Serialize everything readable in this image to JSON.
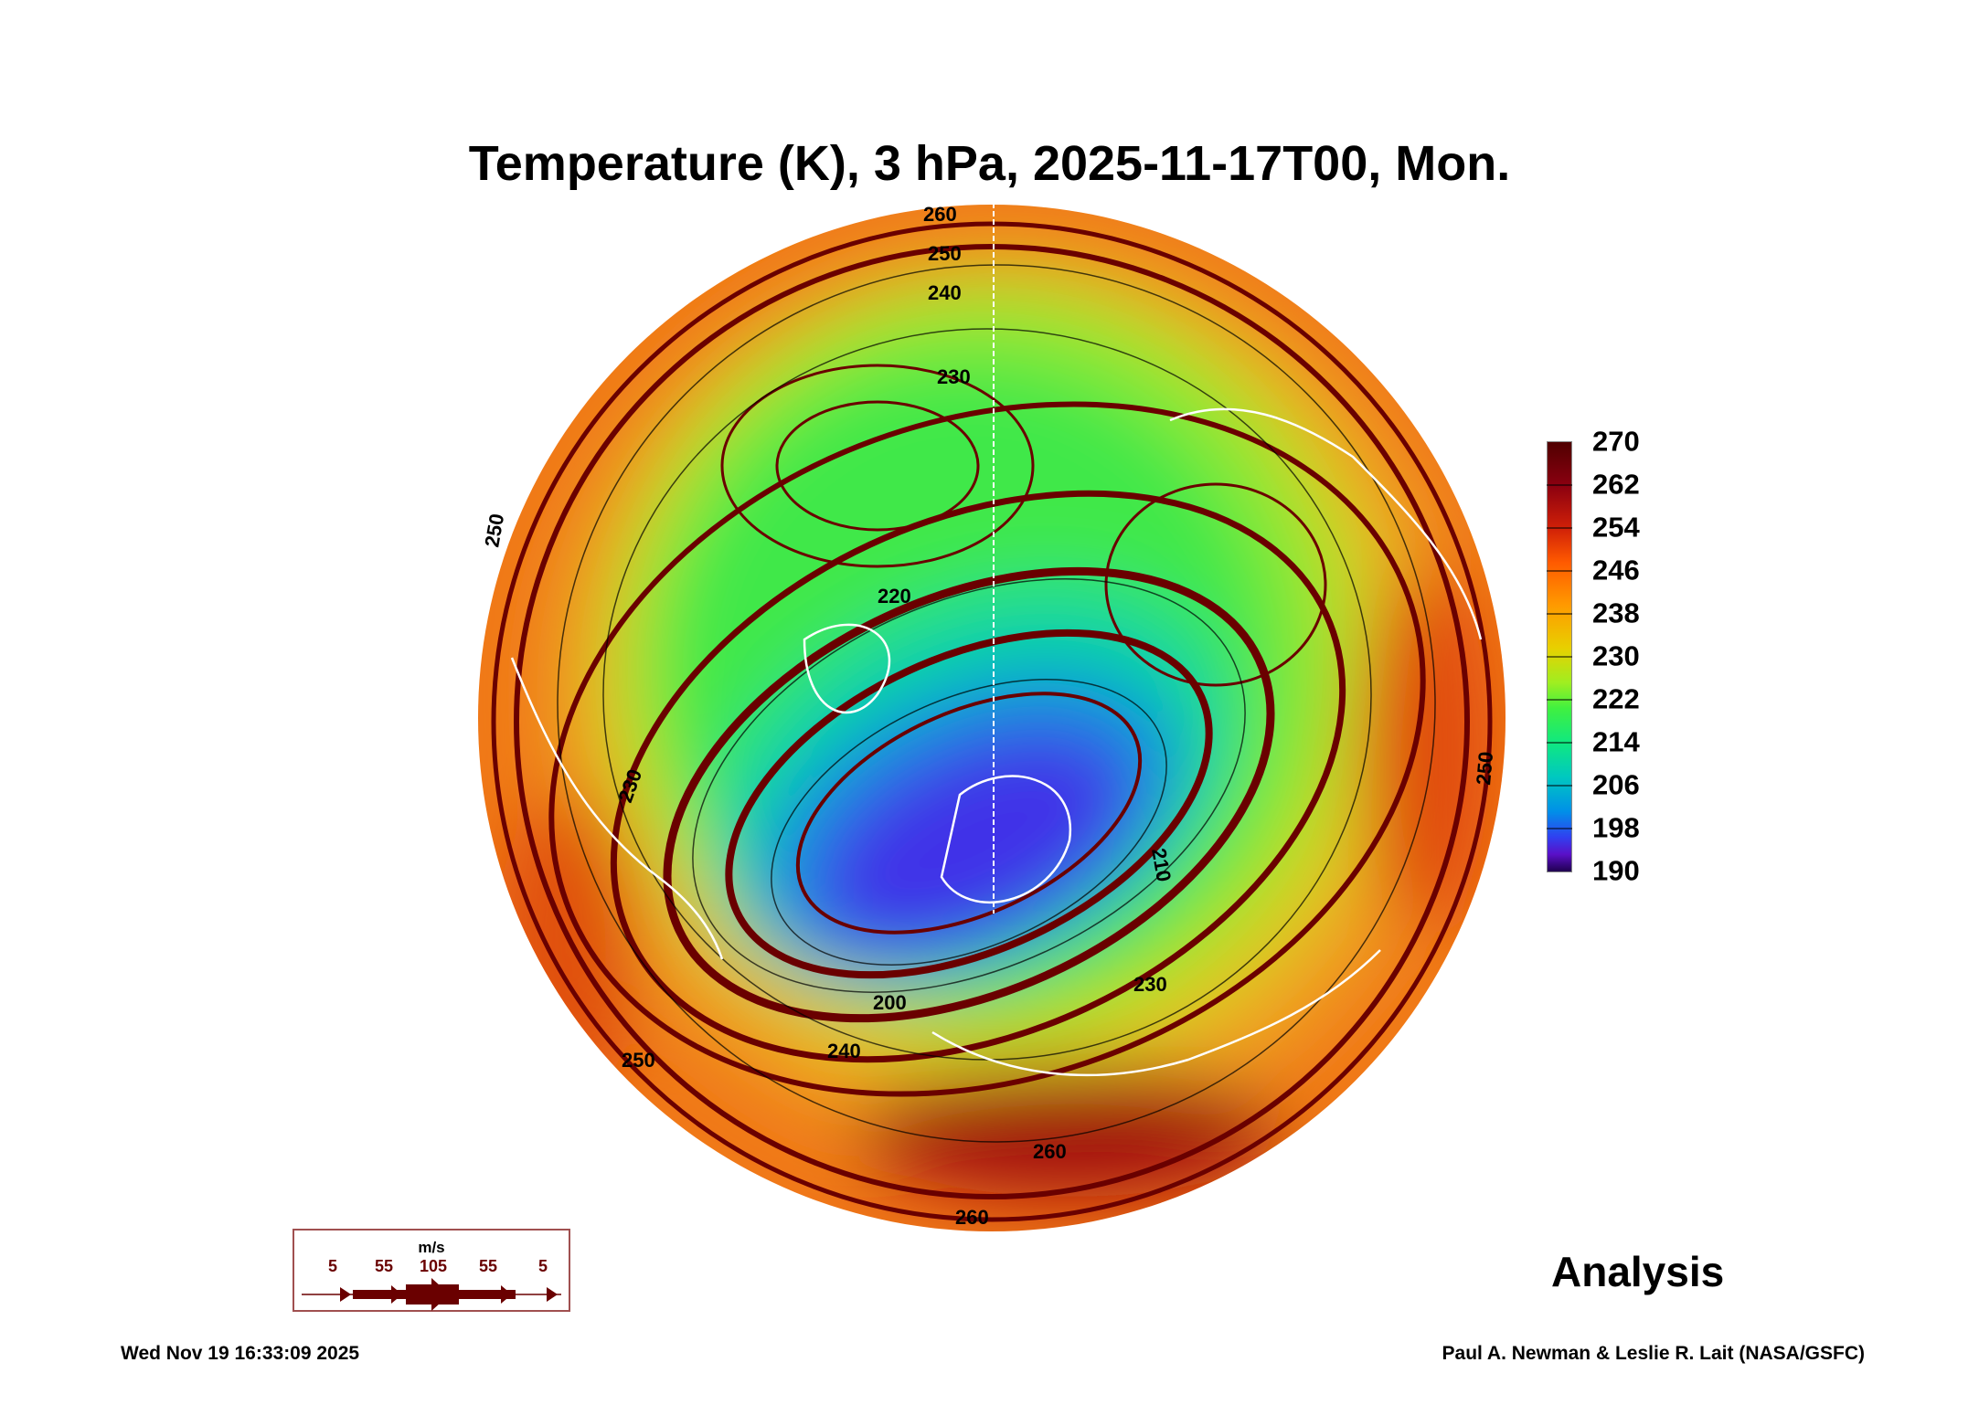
{
  "chart_data": {
    "type": "heatmap",
    "projection": "north polar stereographic",
    "title": "Temperature (K), 3 hPa, 2025-11-17T00, Mon.",
    "variable": "Temperature",
    "units": "K",
    "pressure_level": "3 hPa",
    "colorbar": {
      "min": 190,
      "max": 270,
      "ticks": [
        "270",
        "262",
        "254",
        "246",
        "238",
        "230",
        "222",
        "214",
        "206",
        "198",
        "190"
      ]
    },
    "contour_labels": [
      "260",
      "250",
      "240",
      "230",
      "220",
      "230",
      "210",
      "200",
      "230",
      "240",
      "250",
      "250",
      "250",
      "260",
      "260"
    ],
    "overlay": "wind streamlines",
    "wind_legend": {
      "unit": "m/s",
      "values": [
        "5",
        "55",
        "105",
        "55",
        "5"
      ]
    },
    "cold_minimum_approx_K": 198,
    "warm_maximum_approx_K": 264,
    "label": "Analysis"
  },
  "footer": {
    "timestamp": "Wed Nov 19 16:33:09 2025",
    "credit": "Paul A. Newman & Leslie R. Lait (NASA/GSFC)"
  },
  "colors": {
    "streamline": "#6a0000",
    "coastline": "#ffffff",
    "contour": "#000000"
  }
}
